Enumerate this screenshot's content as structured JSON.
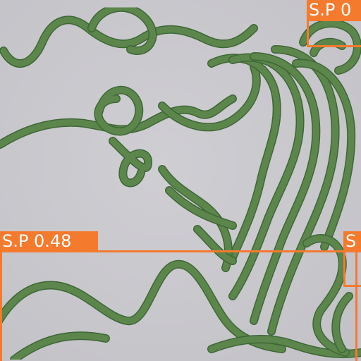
{
  "image": {
    "subject": "microscope-filaments",
    "filament_color": "#5f8a4e",
    "filament_edge_color": "#3f6a38",
    "background_color": "#c9c8cd"
  },
  "detections": [
    {
      "label": "S.P 0.48",
      "color": "#f47a2e"
    },
    {
      "label": "S.P 0",
      "color": "#f47a2e"
    },
    {
      "label": "S",
      "color": "#f47a2e"
    }
  ]
}
